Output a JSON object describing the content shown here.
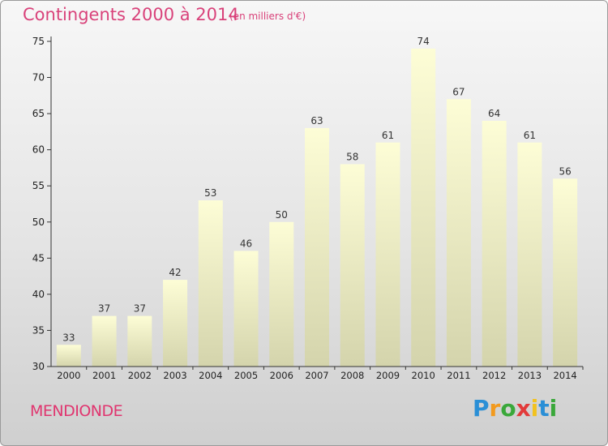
{
  "header": {
    "title": "Contingents 2000 à 2014",
    "subtitle": "(en milliers d'€)"
  },
  "footer": {
    "commune": "MENDIONDE",
    "logo_letters": [
      "P",
      "r",
      "o",
      "x",
      "i",
      "t",
      "i"
    ],
    "logo_colors": [
      "#2a8fd6",
      "#f29a1e",
      "#3aa83a",
      "#e23a3a",
      "#f2c21e",
      "#2a8fd6",
      "#3aa83a"
    ]
  },
  "colors": {
    "title": "#d9427a",
    "bar_top": "#fdfdd6",
    "bar_bottom": "#d4d4ac",
    "axis": "#333333"
  },
  "chart_data": {
    "type": "bar",
    "title": "Contingents 2000 à 2014",
    "subtitle": "(en milliers d'€)",
    "categories": [
      "2000",
      "2001",
      "2002",
      "2003",
      "2004",
      "2005",
      "2006",
      "2007",
      "2008",
      "2009",
      "2010",
      "2011",
      "2012",
      "2013",
      "2014"
    ],
    "values": [
      33,
      37,
      37,
      42,
      53,
      46,
      50,
      63,
      58,
      61,
      74,
      67,
      64,
      61,
      56
    ],
    "ylim": [
      30,
      75
    ],
    "yticks": [
      30,
      35,
      40,
      45,
      50,
      55,
      60,
      65,
      70,
      75
    ],
    "grid": false
  }
}
